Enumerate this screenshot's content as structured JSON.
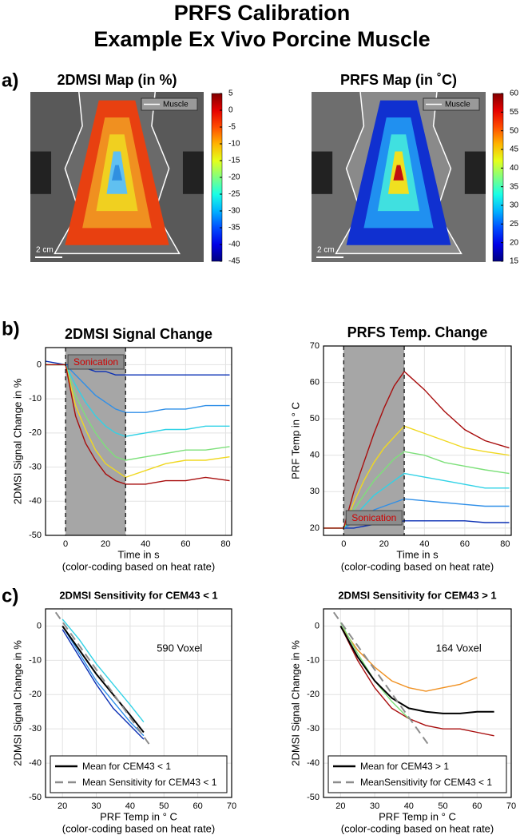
{
  "title": [
    "PRFS Calibration",
    "Example Ex Vivo Porcine Muscle"
  ],
  "panels": [
    "a)",
    "b)",
    "c)"
  ],
  "chart_data": [
    {
      "type": "image",
      "title": "2DMSI Map (in %)",
      "colormap": "jet",
      "clim": [
        -45,
        5
      ],
      "cticks": [
        5,
        0,
        -5,
        -10,
        -15,
        -20,
        -25,
        -30,
        -35,
        -40,
        -45
      ],
      "legend": "Muscle",
      "scale_label": "2 cm"
    },
    {
      "type": "image",
      "title": "PRFS Map (in ˚C)",
      "colormap": "jet",
      "clim": [
        15,
        60
      ],
      "cticks": [
        60,
        55,
        50,
        45,
        40,
        35,
        30,
        25,
        20,
        15
      ],
      "legend": "Muscle",
      "scale_label": "2 cm"
    },
    {
      "type": "line",
      "title": "2DMSI Signal Change",
      "xlabel": "Time in s",
      "subtitle": "(color-coding based on heat rate)",
      "ylabel": "2DMSI Signal Change in %",
      "annotation": "Sonication",
      "shade": [
        0,
        30
      ],
      "grid": true,
      "xlim": [
        -10,
        83
      ],
      "xticks": [
        0,
        20,
        40,
        60,
        80
      ],
      "ylim": [
        -50,
        5
      ],
      "yticks": [
        0,
        -10,
        -20,
        -30,
        -40,
        -50
      ],
      "x": [
        -10,
        0,
        5,
        10,
        15,
        20,
        25,
        30,
        40,
        50,
        60,
        70,
        82
      ],
      "series": [
        {
          "color": "#0a2fb4",
          "values": [
            1,
            0,
            0,
            -1,
            -2,
            -2,
            -3,
            -3,
            -3,
            -3,
            -3,
            -3,
            -3
          ]
        },
        {
          "color": "#2f8fe8",
          "values": [
            0,
            0,
            -3,
            -6,
            -9,
            -11,
            -13,
            -14,
            -14,
            -13,
            -13,
            -12,
            -12
          ]
        },
        {
          "color": "#31d2e6",
          "values": [
            0,
            0,
            -6,
            -11,
            -15,
            -18,
            -20,
            -21,
            -20,
            -19,
            -19,
            -18,
            -18
          ]
        },
        {
          "color": "#7de07a",
          "values": [
            0,
            0,
            -9,
            -15,
            -20,
            -24,
            -27,
            -28,
            -27,
            -26,
            -25,
            -25,
            -24
          ]
        },
        {
          "color": "#f0d820",
          "values": [
            0,
            0,
            -12,
            -19,
            -25,
            -29,
            -31,
            -33,
            -31,
            -29,
            -28,
            -28,
            -27
          ]
        },
        {
          "color": "#a80d0d",
          "values": [
            0,
            0,
            -15,
            -23,
            -28,
            -32,
            -34,
            -35,
            -35,
            -34,
            -34,
            -33,
            -34
          ]
        }
      ]
    },
    {
      "type": "line",
      "title": "PRFS Temp. Change",
      "xlabel": "Time in s",
      "subtitle": "(color-coding based on heat rate)",
      "ylabel": "PRF Temp in ° C",
      "annotation": "Sonication",
      "shade": [
        0,
        30
      ],
      "grid": true,
      "xlim": [
        -10,
        83
      ],
      "xticks": [
        0,
        20,
        40,
        60,
        80
      ],
      "ylim": [
        18,
        70
      ],
      "yticks": [
        20,
        30,
        40,
        50,
        60,
        70
      ],
      "x": [
        -10,
        0,
        5,
        10,
        15,
        20,
        25,
        30,
        40,
        50,
        60,
        70,
        82
      ],
      "series": [
        {
          "color": "#0a2fb4",
          "values": [
            20,
            20,
            20,
            20.5,
            21,
            21,
            21.5,
            22,
            22,
            22,
            22,
            21.5,
            21.5
          ]
        },
        {
          "color": "#2f8fe8",
          "values": [
            20,
            20,
            21.5,
            23,
            25,
            26,
            27,
            28,
            27.5,
            27,
            26.5,
            26,
            26
          ]
        },
        {
          "color": "#31d2e6",
          "values": [
            20,
            20,
            23,
            26,
            29,
            31,
            33,
            35,
            34,
            33,
            32,
            31,
            31
          ]
        },
        {
          "color": "#7de07a",
          "values": [
            20,
            20,
            25,
            29,
            33,
            36,
            39,
            41,
            40,
            38,
            37,
            36,
            35
          ]
        },
        {
          "color": "#f0d820",
          "values": [
            20,
            20,
            27,
            33,
            38,
            42,
            45,
            48,
            46,
            44,
            42,
            41,
            40
          ]
        },
        {
          "color": "#a80d0d",
          "values": [
            20,
            20,
            30,
            38,
            46,
            53,
            59,
            63,
            58,
            52,
            47,
            44,
            42
          ]
        }
      ]
    },
    {
      "type": "line",
      "title": "2DMSI Sensitivity for CEM43 < 1",
      "xlabel": "PRF Temp in ° C",
      "subtitle": "(color-coding based on heat rate)",
      "ylabel": "2DMSI Signal Change in %",
      "annotation": "590 Voxel",
      "grid": true,
      "xlim": [
        15,
        70
      ],
      "xticks": [
        20,
        30,
        40,
        50,
        60,
        70
      ],
      "ylim": [
        -50,
        5
      ],
      "yticks": [
        0,
        -10,
        -20,
        -30,
        -40,
        -50
      ],
      "series": [
        {
          "color": "#2f8fe8",
          "x": [
            20,
            25,
            30,
            35,
            40,
            44
          ],
          "values": [
            0,
            -8,
            -16,
            -22,
            -28,
            -32
          ]
        },
        {
          "color": "#31d2e6",
          "x": [
            20,
            25,
            30,
            35,
            40,
            44
          ],
          "values": [
            2,
            -4,
            -11,
            -17,
            -23,
            -28
          ]
        },
        {
          "color": "#0a2fb4",
          "x": [
            20,
            25,
            30,
            35,
            40,
            44
          ],
          "values": [
            -1,
            -9,
            -17,
            -24,
            -29,
            -33
          ]
        },
        {
          "name": "Mean for CEM43 < 1",
          "color": "#000000",
          "x": [
            20,
            25,
            30,
            35,
            40,
            44
          ],
          "values": [
            0,
            -7,
            -14,
            -20,
            -26,
            -31
          ]
        },
        {
          "name": "Mean Sensitivity for CEM43 < 1",
          "color": "#8c8c8c",
          "dash": true,
          "x": [
            18,
            46
          ],
          "values": [
            4,
            -35
          ]
        }
      ]
    },
    {
      "type": "line",
      "title": "2DMSI Sensitivity for CEM43 > 1",
      "xlabel": "PRF Temp in ° C",
      "subtitle": "(color-coding based on heat rate)",
      "ylabel": "2DMSI Signal Change in %",
      "annotation": "164 Voxel",
      "grid": true,
      "xlim": [
        15,
        70
      ],
      "xticks": [
        20,
        30,
        40,
        50,
        60,
        70
      ],
      "ylim": [
        -50,
        5
      ],
      "yticks": [
        0,
        -10,
        -20,
        -30,
        -40,
        -50
      ],
      "series": [
        {
          "color": "#a80d0d",
          "x": [
            20,
            25,
            30,
            35,
            40,
            45,
            50,
            55,
            60,
            65
          ],
          "values": [
            0,
            -10,
            -18,
            -24,
            -27,
            -29,
            -30,
            -30,
            -31,
            -32
          ]
        },
        {
          "color": "#f09020",
          "x": [
            20,
            25,
            30,
            35,
            40,
            45,
            50,
            55,
            60,
            65
          ],
          "values": [
            0,
            -7,
            -12,
            -16,
            -18,
            -19,
            -18,
            -17,
            -15,
            null
          ]
        },
        {
          "color": "#7de07a",
          "x": [
            20,
            25,
            30,
            35,
            40,
            45,
            50,
            55,
            60,
            65
          ],
          "values": [
            1,
            -8,
            -16,
            -22,
            -27,
            null,
            null,
            null,
            null,
            null
          ]
        },
        {
          "name": "Mean for CEM43 > 1",
          "color": "#000000",
          "x": [
            20,
            25,
            30,
            35,
            40,
            45,
            50,
            55,
            60,
            65
          ],
          "values": [
            0,
            -9,
            -16,
            -21,
            -24,
            -25,
            -25.5,
            -25.5,
            -25,
            -25
          ]
        },
        {
          "name": "MeanSensitivity for CEM43 < 1",
          "color": "#8c8c8c",
          "dash": true,
          "x": [
            18,
            46
          ],
          "values": [
            4,
            -35
          ]
        }
      ]
    }
  ]
}
